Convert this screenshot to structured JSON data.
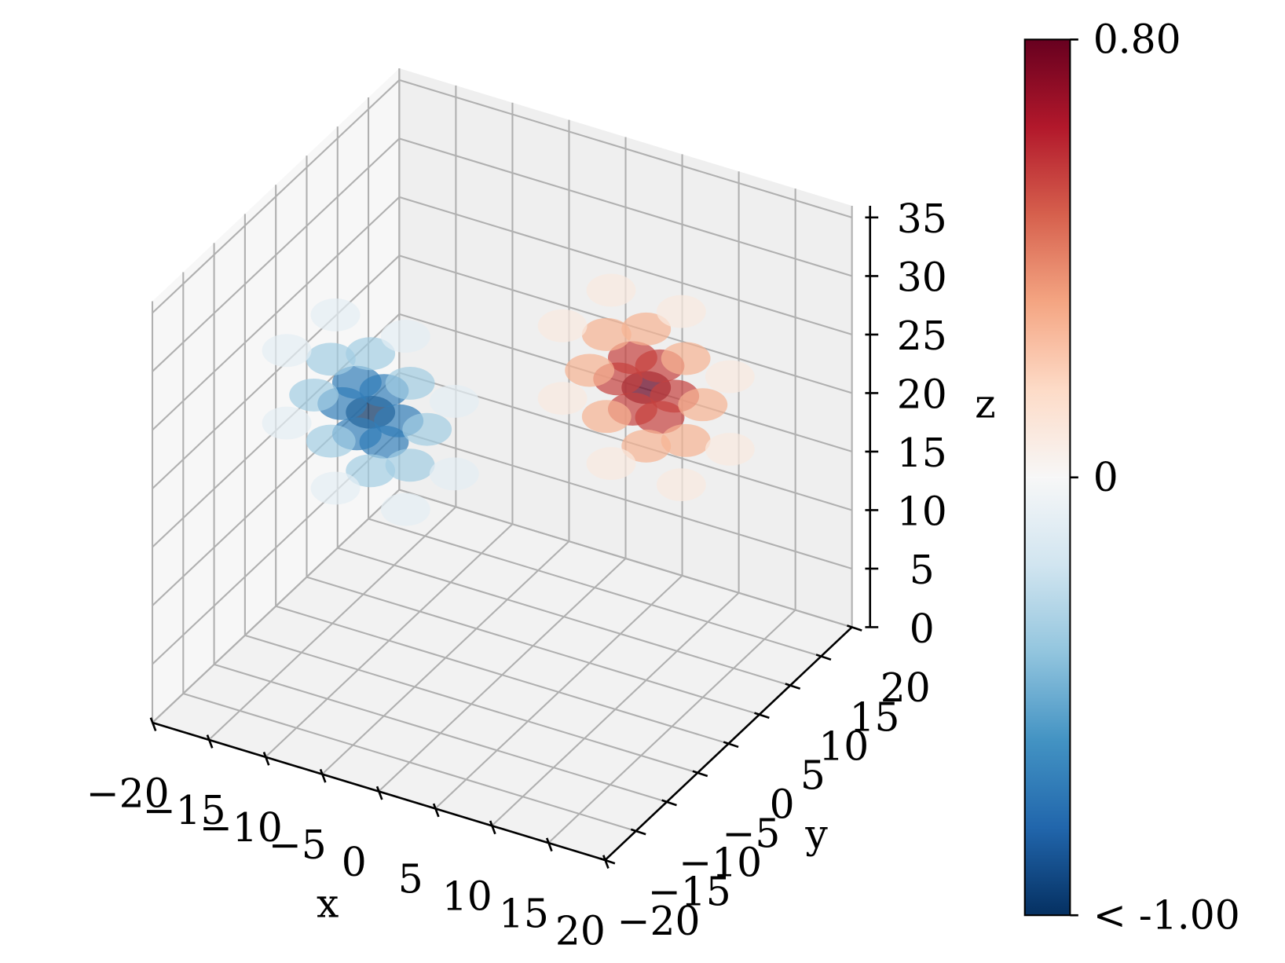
{
  "chart_data": {
    "type": "scatter3d",
    "xlabel": "x",
    "ylabel": "y",
    "zlabel": "z",
    "xlim": [
      -20,
      20
    ],
    "ylim": [
      -20,
      20
    ],
    "zlim": [
      0,
      36
    ],
    "xticks": [
      {
        "value": -20,
        "label": "−20"
      },
      {
        "value": -15,
        "label": "−15"
      },
      {
        "value": -10,
        "label": "−10"
      },
      {
        "value": -5,
        "label": "−5"
      },
      0,
      5,
      10,
      15,
      20
    ],
    "yticks": [
      {
        "value": -20,
        "label": "−20"
      },
      {
        "value": -15,
        "label": "−15"
      },
      {
        "value": -10,
        "label": "−10"
      },
      {
        "value": -5,
        "label": "−5"
      },
      0,
      5,
      10,
      15,
      20
    ],
    "zticks": [
      0,
      5,
      10,
      15,
      20,
      25,
      30,
      35
    ],
    "grid": true,
    "colormap": "RdBu_r",
    "clim": [
      -1,
      0.8
    ],
    "ccenter": 0,
    "cticks": [
      {
        "value": 0.8,
        "label": "0.80"
      },
      0,
      {
        "value": -1,
        "label": "< -1.00"
      }
    ],
    "x": [
      -10,
      -7.5,
      -8.8,
      -11.2,
      -12.5,
      -11.2,
      -8.8,
      -5,
      -6.5,
      -10,
      -13.5,
      -15,
      -13.5,
      -10,
      -6.5,
      -2.6,
      -6.9,
      -13.1,
      -17.4,
      -17.4,
      -13.1,
      -6.9,
      -2.6,
      10,
      12.5,
      11.2,
      8.8,
      7.5,
      8.8,
      11.2,
      15,
      13.5,
      10,
      6.5,
      5,
      6.5,
      10,
      13.5,
      17.4,
      13.1,
      6.9,
      2.6,
      2.6,
      6.9,
      13.1,
      17.4
    ],
    "y": [
      -3,
      -3,
      -3,
      -3,
      -3,
      -3,
      -3,
      -3,
      -3,
      -3,
      -3,
      -3,
      -3,
      -3,
      -3,
      -3,
      -3,
      -3,
      -3,
      -3,
      -3,
      -3,
      -3,
      5,
      5,
      5,
      5,
      5,
      5,
      5,
      5,
      5,
      5,
      5,
      5,
      5,
      5,
      5,
      5,
      5,
      5,
      5,
      5,
      5,
      5,
      5
    ],
    "z": [
      21,
      21,
      23.2,
      23.2,
      21,
      18.8,
      18.8,
      21,
      24.5,
      26,
      24.5,
      21,
      17.5,
      16,
      17.5,
      24.1,
      28.4,
      28.4,
      24.1,
      17.9,
      13.6,
      13.6,
      17.9,
      25,
      25,
      27.2,
      27.2,
      25,
      22.8,
      22.8,
      25,
      28.5,
      30,
      28.5,
      25,
      21.5,
      20,
      21.5,
      28.1,
      32.4,
      32.4,
      28.1,
      21.9,
      17.6,
      17.6,
      21.9
    ],
    "values": [
      -1,
      -0.7,
      -0.7,
      -0.7,
      -0.7,
      -0.7,
      -0.7,
      -0.35,
      -0.35,
      -0.35,
      -0.35,
      -0.35,
      -0.35,
      -0.35,
      -0.35,
      -0.1,
      -0.1,
      -0.1,
      -0.1,
      -0.1,
      -0.1,
      -0.1,
      -0.1,
      0.8,
      0.55,
      0.55,
      0.55,
      0.55,
      0.55,
      0.55,
      0.28,
      0.28,
      0.28,
      0.28,
      0.28,
      0.28,
      0.28,
      0.28,
      0.08,
      0.08,
      0.08,
      0.08,
      0.08,
      0.08,
      0.08,
      0.08
    ]
  }
}
